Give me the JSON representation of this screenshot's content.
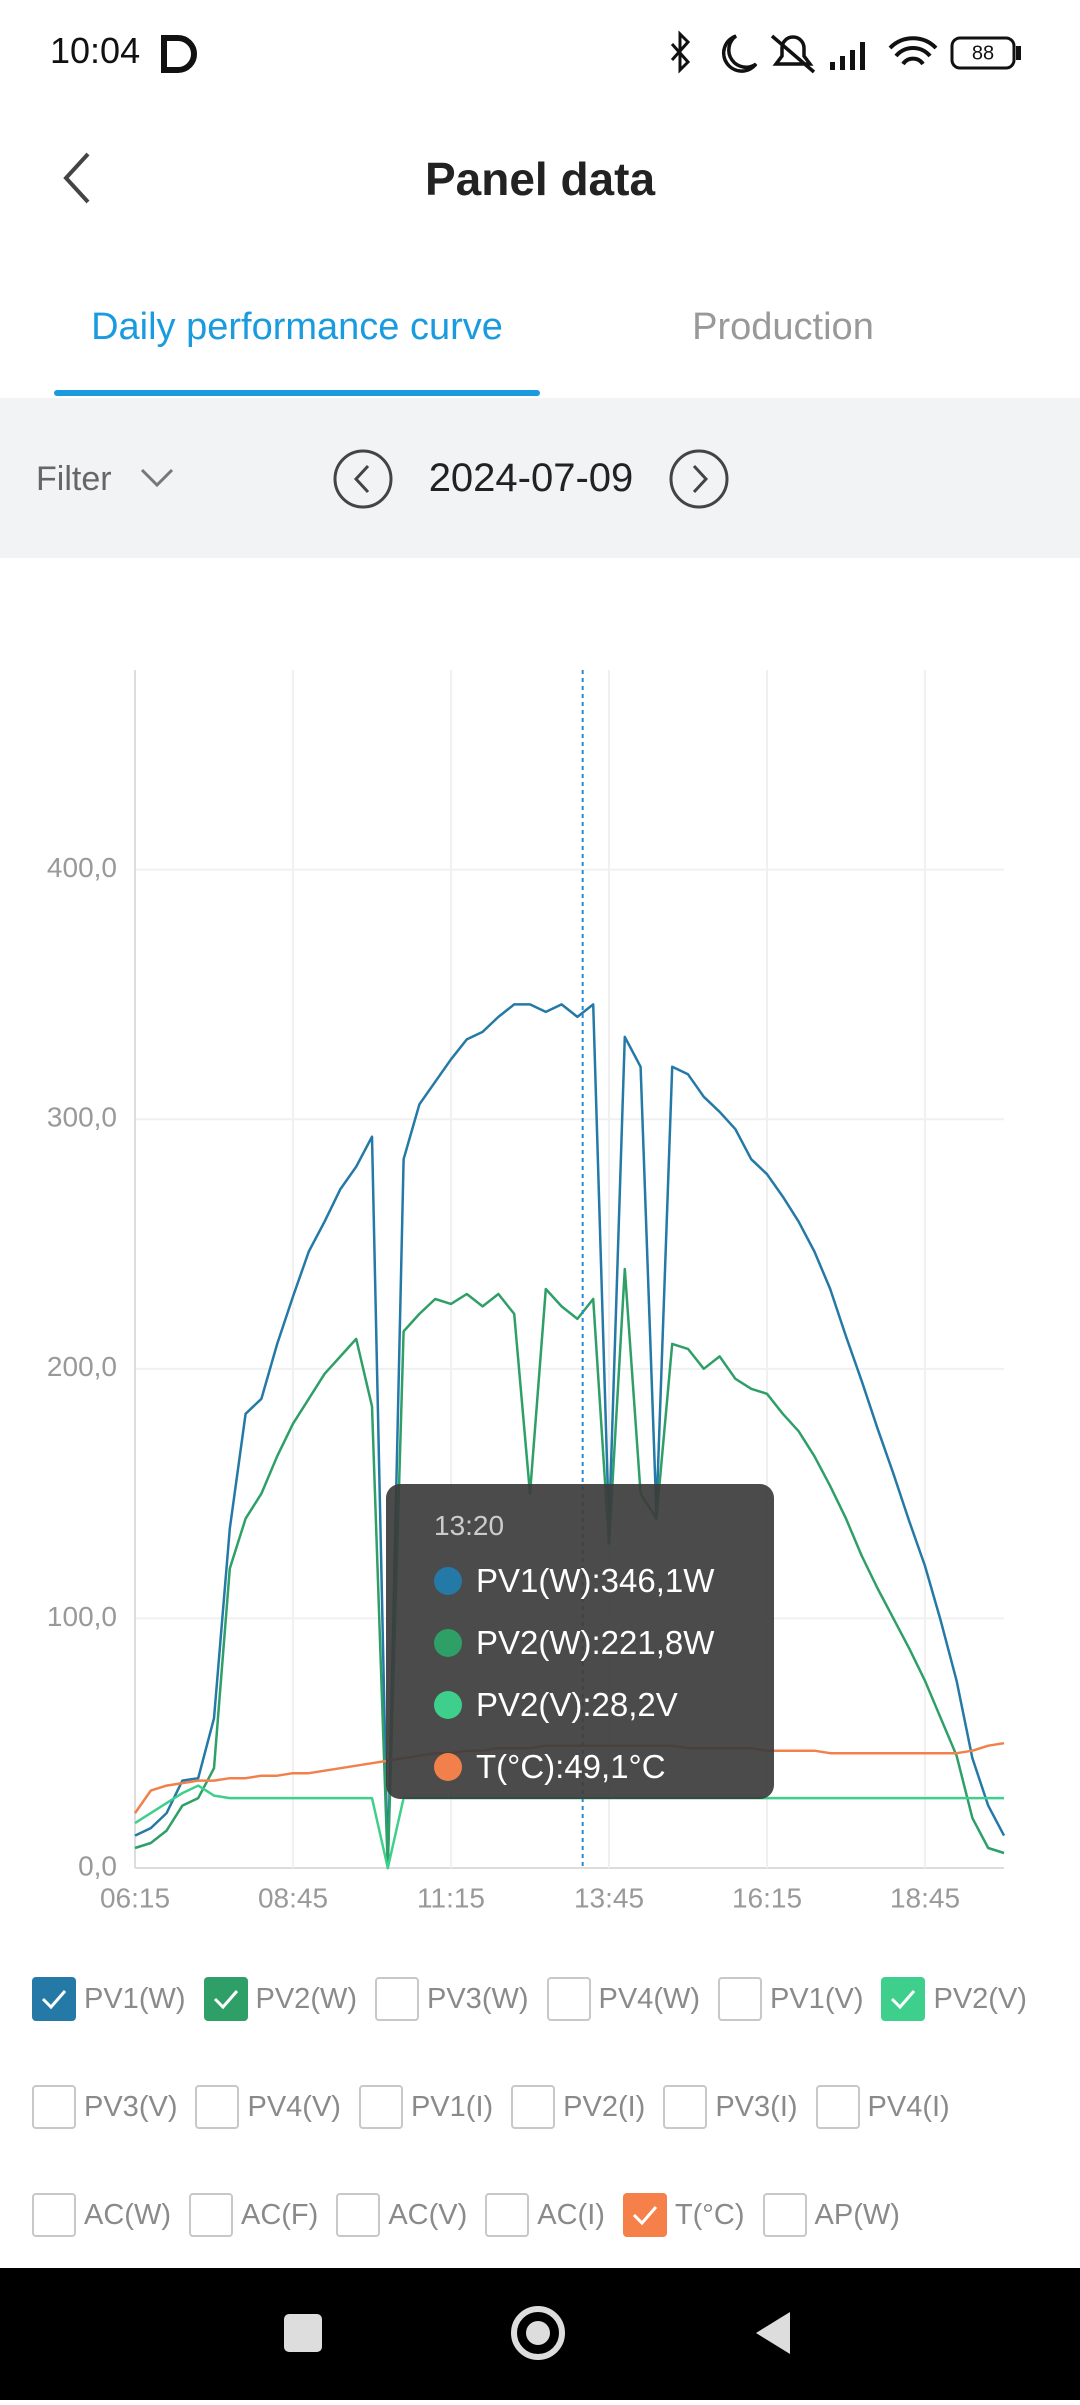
{
  "status_bar": {
    "time": "10:04",
    "battery": "88"
  },
  "header": {
    "title": "Panel data"
  },
  "tabs": [
    "Daily performance curve",
    "Production"
  ],
  "filter": {
    "label": "Filter",
    "date": "2024-07-09"
  },
  "chart_data": {
    "type": "line",
    "x": [
      "06:15",
      "06:30",
      "06:45",
      "07:00",
      "07:15",
      "07:30",
      "07:45",
      "08:00",
      "08:15",
      "08:30",
      "08:45",
      "09:00",
      "09:15",
      "09:30",
      "09:45",
      "10:00",
      "10:15",
      "10:30",
      "10:45",
      "11:00",
      "11:15",
      "11:30",
      "11:45",
      "12:00",
      "12:15",
      "12:30",
      "12:45",
      "13:00",
      "13:15",
      "13:30",
      "13:45",
      "14:00",
      "14:15",
      "14:30",
      "14:45",
      "15:00",
      "15:15",
      "15:30",
      "15:45",
      "16:00",
      "16:15",
      "16:30",
      "16:45",
      "17:00",
      "17:15",
      "17:30",
      "17:45",
      "18:00",
      "18:15",
      "18:30",
      "18:45",
      "19:00",
      "19:15",
      "19:30",
      "19:45",
      "20:00"
    ],
    "xlim": [
      "06:15",
      "20:00"
    ],
    "xticks": [
      "06:15",
      "08:45",
      "11:15",
      "13:45",
      "16:15",
      "18:45"
    ],
    "ylim": [
      0,
      480
    ],
    "yticks": [
      {
        "value": 0,
        "label": "0,0"
      },
      {
        "value": 100,
        "label": "100,0"
      },
      {
        "value": 200,
        "label": "200,0"
      },
      {
        "value": 300,
        "label": "300,0"
      },
      {
        "value": 400,
        "label": "400,0"
      }
    ],
    "grid": true,
    "series": [
      {
        "name": "PV1(W)",
        "color": "#2479a6",
        "values": [
          13,
          16,
          22,
          35,
          36,
          60,
          136,
          182,
          188,
          210,
          229,
          247,
          259,
          272,
          281,
          293,
          0,
          284,
          306,
          315,
          324,
          332,
          335,
          341,
          346,
          346,
          343,
          346,
          341,
          346,
          136,
          333,
          321,
          142,
          321,
          318,
          309,
          303,
          296,
          284,
          278,
          269,
          259,
          247,
          232,
          213,
          195,
          176,
          158,
          139,
          121,
          99,
          75,
          44,
          25,
          13
        ]
      },
      {
        "name": "PV2(W)",
        "color": "#2f9f68",
        "values": [
          8,
          10,
          15,
          25,
          28,
          40,
          120,
          140,
          150,
          165,
          178,
          188,
          198,
          205,
          212,
          185,
          0,
          215,
          222,
          228,
          226,
          230,
          225,
          230,
          222,
          150,
          232,
          225,
          220,
          228,
          130,
          240,
          150,
          140,
          210,
          208,
          200,
          205,
          196,
          192,
          190,
          182,
          175,
          165,
          153,
          140,
          125,
          112,
          100,
          88,
          75,
          60,
          45,
          20,
          8,
          6
        ]
      },
      {
        "name": "PV2(V)",
        "color": "#3fcf8c",
        "values": [
          18,
          22,
          26,
          30,
          33,
          29,
          28,
          28,
          28,
          28,
          28,
          28,
          28,
          28,
          28,
          28,
          0,
          28,
          28,
          28,
          28,
          28,
          28,
          28,
          28,
          28,
          28,
          28,
          28,
          28,
          28,
          28,
          28,
          28,
          28,
          28,
          28,
          28,
          28,
          28,
          28,
          28,
          28,
          28,
          28,
          28,
          28,
          28,
          28,
          28,
          28,
          28,
          28,
          28,
          28,
          28
        ]
      },
      {
        "name": "T(°C)",
        "color": "#f2804a",
        "values": [
          22,
          31,
          33,
          34,
          35,
          35,
          36,
          36,
          37,
          37,
          38,
          38,
          39,
          40,
          41,
          42,
          43,
          44,
          45,
          46,
          46,
          47,
          47,
          48,
          48,
          48,
          49,
          49,
          49,
          49,
          49,
          49,
          49,
          49,
          49,
          48,
          48,
          48,
          48,
          48,
          47,
          47,
          47,
          47,
          46,
          46,
          46,
          46,
          46,
          46,
          46,
          46,
          46,
          47,
          49,
          50
        ]
      }
    ],
    "tooltip": {
      "time": "13:20",
      "items": [
        {
          "text": "PV1(W):346,1W",
          "color": "#2479a6"
        },
        {
          "text": "PV2(W):221,8W",
          "color": "#2f9f68"
        },
        {
          "text": "PV2(V):28,2V",
          "color": "#3fcf8c"
        },
        {
          "text": "T(°C):49,1°C",
          "color": "#f2804a"
        }
      ]
    }
  },
  "legend_rows": [
    [
      {
        "label": "PV1(W)",
        "checked": true,
        "color": "#2479a6"
      },
      {
        "label": "PV2(W)",
        "checked": true,
        "color": "#2f9f68"
      },
      {
        "label": "PV3(W)",
        "checked": false
      },
      {
        "label": "PV4(W)",
        "checked": false
      },
      {
        "label": "PV1(V)",
        "checked": false
      },
      {
        "label": "PV2(V)",
        "checked": true,
        "color": "#3fcf8c"
      }
    ],
    [
      {
        "label": "PV3(V)",
        "checked": false
      },
      {
        "label": "PV4(V)",
        "checked": false
      },
      {
        "label": "PV1(I)",
        "checked": false
      },
      {
        "label": "PV2(I)",
        "checked": false
      },
      {
        "label": "PV3(I)",
        "checked": false
      },
      {
        "label": "PV4(I)",
        "checked": false
      }
    ],
    [
      {
        "label": "AC(W)",
        "checked": false
      },
      {
        "label": "AC(F)",
        "checked": false
      },
      {
        "label": "AC(V)",
        "checked": false
      },
      {
        "label": "AC(I)",
        "checked": false
      },
      {
        "label": "T(°C)",
        "checked": true,
        "color": "#f5804a"
      },
      {
        "label": "AP(W)",
        "checked": false
      }
    ]
  ]
}
